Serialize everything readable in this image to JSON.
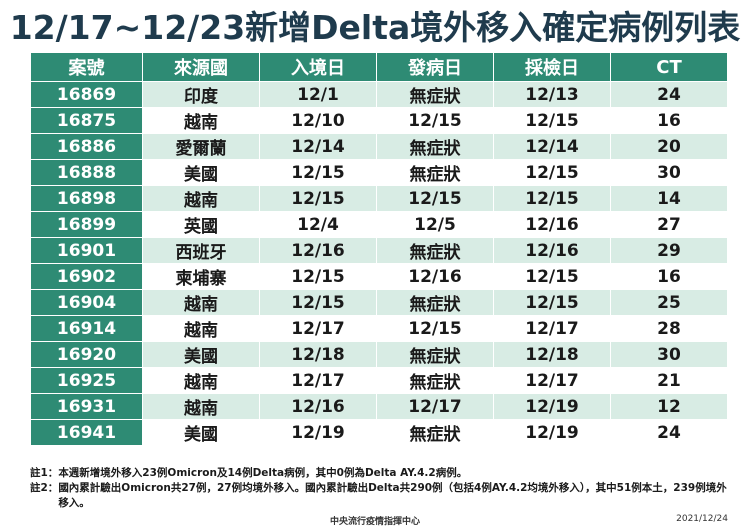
{
  "title": "12/17~12/23新增Delta境外移入確定病例列表",
  "table": {
    "headers": [
      "案號",
      "來源國",
      "入境日",
      "發病日",
      "採檢日",
      "CT"
    ],
    "rows": [
      [
        "16869",
        "印度",
        "12/1",
        "無症狀",
        "12/13",
        "24"
      ],
      [
        "16875",
        "越南",
        "12/10",
        "12/15",
        "12/15",
        "16"
      ],
      [
        "16886",
        "愛爾蘭",
        "12/14",
        "無症狀",
        "12/14",
        "20"
      ],
      [
        "16888",
        "美國",
        "12/15",
        "無症狀",
        "12/15",
        "30"
      ],
      [
        "16898",
        "越南",
        "12/15",
        "12/15",
        "12/15",
        "14"
      ],
      [
        "16899",
        "英國",
        "12/4",
        "12/5",
        "12/16",
        "27"
      ],
      [
        "16901",
        "西班牙",
        "12/16",
        "無症狀",
        "12/16",
        "29"
      ],
      [
        "16902",
        "柬埔寨",
        "12/15",
        "12/16",
        "12/15",
        "16"
      ],
      [
        "16904",
        "越南",
        "12/15",
        "無症狀",
        "12/15",
        "25"
      ],
      [
        "16914",
        "越南",
        "12/17",
        "12/15",
        "12/17",
        "28"
      ],
      [
        "16920",
        "美國",
        "12/18",
        "無症狀",
        "12/18",
        "30"
      ],
      [
        "16925",
        "越南",
        "12/17",
        "無症狀",
        "12/17",
        "21"
      ],
      [
        "16931",
        "越南",
        "12/16",
        "12/17",
        "12/19",
        "12"
      ],
      [
        "16941",
        "美國",
        "12/19",
        "無症狀",
        "12/19",
        "24"
      ]
    ]
  },
  "notes": [
    {
      "tag": "註1：",
      "text": "本週新增境外移入23例Omicron及14例Delta病例，其中0例為Delta AY.4.2病例。"
    },
    {
      "tag": "註2：",
      "text": "國內累計驗出Omicron共27例，27例均境外移入。國內累計驗出Delta共290例（包括4例AY.4.2均境外移入），其中51例本土，239例境外移入。"
    }
  ],
  "footer": {
    "org": "中央流行疫情指揮中心",
    "date": "2021/12/24"
  },
  "colors": {
    "header_bg": "#2e8b74",
    "row_alt_bg": "#d8ece4",
    "title": "#1f3b4d"
  }
}
